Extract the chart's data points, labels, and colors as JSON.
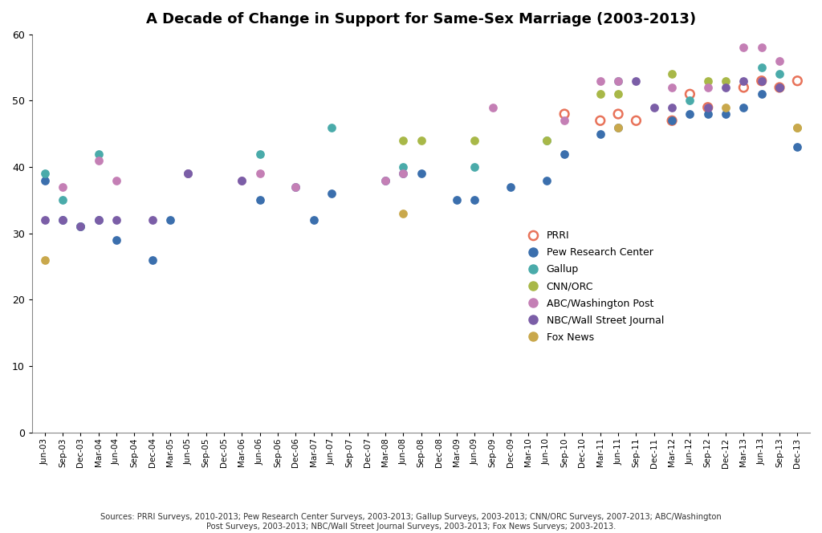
{
  "title": "A Decade of Change in Support for Same-Sex Marriage (2003-2013)",
  "source_text": "Sources: PRRI Surveys, 2010-2013; Pew Research Center Surveys, 2003-2013; Gallup Surveys, 2003-2013; CNN/ORC Surveys, 2007-2013; ABC/Washington\nPost Surveys, 2003-2013; NBC/Wall Street Journal Surveys, 2003-2013; Fox News Surveys; 2003-2013.",
  "ylim": [
    0,
    60
  ],
  "yticks": [
    0,
    10,
    20,
    30,
    40,
    50,
    60
  ],
  "series": {
    "PRRI": {
      "color": "#E8735A",
      "filled": false,
      "data": [
        [
          "Sep-10",
          48
        ],
        [
          "Mar-11",
          47
        ],
        [
          "Jun-11",
          48
        ],
        [
          "Sep-11",
          47
        ],
        [
          "Mar-12",
          47
        ],
        [
          "Jun-12",
          51
        ],
        [
          "Sep-12",
          49
        ],
        [
          "Mar-13",
          52
        ],
        [
          "Jun-13",
          53
        ],
        [
          "Sep-13",
          52
        ],
        [
          "Dec-13",
          53
        ]
      ]
    },
    "Pew Research Center": {
      "color": "#3B6FAD",
      "filled": true,
      "data": [
        [
          "Jun-03",
          38
        ],
        [
          "Sep-03",
          32
        ],
        [
          "Dec-03",
          31
        ],
        [
          "Mar-04",
          32
        ],
        [
          "Jun-04",
          29
        ],
        [
          "Dec-04",
          26
        ],
        [
          "Mar-05",
          32
        ],
        [
          "Jun-06",
          35
        ],
        [
          "Dec-06",
          37
        ],
        [
          "Mar-07",
          32
        ],
        [
          "Jun-07",
          36
        ],
        [
          "Mar-08",
          38
        ],
        [
          "Jun-08",
          39
        ],
        [
          "Sep-08",
          39
        ],
        [
          "Mar-09",
          35
        ],
        [
          "Jun-09",
          35
        ],
        [
          "Dec-09",
          37
        ],
        [
          "Jun-10",
          38
        ],
        [
          "Sep-10",
          42
        ],
        [
          "Mar-11",
          45
        ],
        [
          "Jun-11",
          46
        ],
        [
          "Mar-12",
          47
        ],
        [
          "Jun-12",
          48
        ],
        [
          "Sep-12",
          48
        ],
        [
          "Dec-12",
          48
        ],
        [
          "Mar-13",
          49
        ],
        [
          "Jun-13",
          51
        ],
        [
          "Sep-13",
          52
        ],
        [
          "Dec-13",
          43
        ]
      ]
    },
    "Gallup": {
      "color": "#4AABAA",
      "filled": true,
      "data": [
        [
          "Jun-03",
          39
        ],
        [
          "Sep-03",
          35
        ],
        [
          "Dec-03",
          31
        ],
        [
          "Mar-04",
          42
        ],
        [
          "Jun-05",
          39
        ],
        [
          "Jun-06",
          42
        ],
        [
          "Jun-07",
          46
        ],
        [
          "Jun-08",
          40
        ],
        [
          "Jun-09",
          40
        ],
        [
          "Jun-10",
          44
        ],
        [
          "Jun-11",
          53
        ],
        [
          "Jun-12",
          50
        ],
        [
          "Jun-13",
          55
        ],
        [
          "Sep-13",
          54
        ]
      ]
    },
    "CNN/ORC": {
      "color": "#A8B848",
      "filled": true,
      "data": [
        [
          "Jun-08",
          44
        ],
        [
          "Sep-08",
          44
        ],
        [
          "Jun-09",
          44
        ],
        [
          "Jun-10",
          44
        ],
        [
          "Mar-11",
          51
        ],
        [
          "Jun-11",
          51
        ],
        [
          "Mar-12",
          54
        ],
        [
          "Sep-12",
          53
        ],
        [
          "Dec-12",
          53
        ],
        [
          "Dec-13",
          46
        ]
      ]
    },
    "ABC/Washington Post": {
      "color": "#C47FB5",
      "filled": true,
      "data": [
        [
          "Sep-03",
          37
        ],
        [
          "Mar-04",
          41
        ],
        [
          "Jun-04",
          38
        ],
        [
          "Jun-05",
          39
        ],
        [
          "Mar-06",
          38
        ],
        [
          "Jun-06",
          39
        ],
        [
          "Dec-06",
          37
        ],
        [
          "Mar-08",
          38
        ],
        [
          "Jun-08",
          39
        ],
        [
          "Sep-09",
          49
        ],
        [
          "Sep-10",
          47
        ],
        [
          "Mar-11",
          53
        ],
        [
          "Jun-11",
          53
        ],
        [
          "Mar-12",
          52
        ],
        [
          "Sep-12",
          52
        ],
        [
          "Mar-13",
          58
        ],
        [
          "Jun-13",
          58
        ],
        [
          "Sep-13",
          56
        ]
      ]
    },
    "NBC/Wall Street Journal": {
      "color": "#7B5EA7",
      "filled": true,
      "data": [
        [
          "Jun-03",
          32
        ],
        [
          "Sep-03",
          32
        ],
        [
          "Dec-03",
          31
        ],
        [
          "Mar-04",
          32
        ],
        [
          "Jun-04",
          32
        ],
        [
          "Dec-04",
          32
        ],
        [
          "Jun-05",
          39
        ],
        [
          "Mar-06",
          38
        ],
        [
          "Sep-11",
          53
        ],
        [
          "Dec-11",
          49
        ],
        [
          "Mar-12",
          49
        ],
        [
          "Sep-12",
          49
        ],
        [
          "Dec-12",
          52
        ],
        [
          "Mar-13",
          53
        ],
        [
          "Jun-13",
          53
        ],
        [
          "Sep-13",
          52
        ]
      ]
    },
    "Fox News": {
      "color": "#C9A84C",
      "filled": true,
      "data": [
        [
          "Jun-03",
          26
        ],
        [
          "Jun-08",
          33
        ],
        [
          "Jun-11",
          46
        ],
        [
          "Dec-12",
          49
        ],
        [
          "Dec-13",
          46
        ]
      ]
    }
  },
  "x_tick_labels": [
    "Jun-03",
    "Sep-03",
    "Dec-03",
    "Mar-04",
    "Jun-04",
    "Sep-04",
    "Dec-04",
    "Mar-05",
    "Jun-05",
    "Sep-05",
    "Dec-05",
    "Mar-06",
    "Jun-06",
    "Sep-06",
    "Dec-06",
    "Mar-07",
    "Jun-07",
    "Sep-07",
    "Dec-07",
    "Mar-08",
    "Jun-08",
    "Sep-08",
    "Dec-08",
    "Mar-09",
    "Jun-09",
    "Sep-09",
    "Dec-09",
    "Mar-10",
    "Jun-10",
    "Sep-10",
    "Dec-10",
    "Mar-11",
    "Jun-11",
    "Sep-11",
    "Dec-11",
    "Mar-12",
    "Jun-12",
    "Sep-12",
    "Dec-12",
    "Mar-13",
    "Jun-13",
    "Sep-13",
    "Dec-13"
  ]
}
